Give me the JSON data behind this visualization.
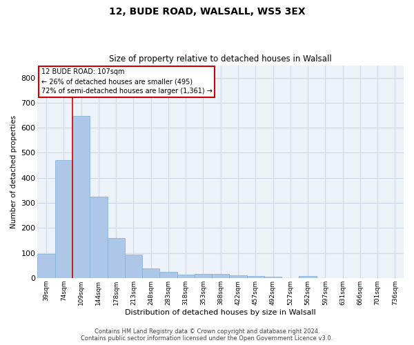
{
  "title1": "12, BUDE ROAD, WALSALL, WS5 3EX",
  "title2": "Size of property relative to detached houses in Walsall",
  "xlabel": "Distribution of detached houses by size in Walsall",
  "ylabel": "Number of detached properties",
  "categories": [
    "39sqm",
    "74sqm",
    "109sqm",
    "144sqm",
    "178sqm",
    "213sqm",
    "248sqm",
    "283sqm",
    "318sqm",
    "353sqm",
    "388sqm",
    "422sqm",
    "457sqm",
    "492sqm",
    "527sqm",
    "562sqm",
    "597sqm",
    "631sqm",
    "666sqm",
    "701sqm",
    "736sqm"
  ],
  "values": [
    95,
    470,
    648,
    325,
    158,
    92,
    38,
    23,
    13,
    15,
    15,
    11,
    7,
    5,
    0,
    7,
    0,
    0,
    0,
    0,
    0
  ],
  "bar_color": "#aec6e8",
  "bar_edge_color": "#7bafd4",
  "red_line_x": 2,
  "annotation_title": "12 BUDE ROAD: 107sqm",
  "annotation_line1": "← 26% of detached houses are smaller (495)",
  "annotation_line2": "72% of semi-detached houses are larger (1,361) →",
  "annotation_box_color": "#ffffff",
  "annotation_box_edge": "#cc0000",
  "ylim": [
    0,
    850
  ],
  "yticks": [
    0,
    100,
    200,
    300,
    400,
    500,
    600,
    700,
    800
  ],
  "grid_color": "#d0d8e8",
  "background_color": "#edf2f9",
  "footer1": "Contains HM Land Registry data © Crown copyright and database right 2024.",
  "footer2": "Contains public sector information licensed under the Open Government Licence v3.0."
}
